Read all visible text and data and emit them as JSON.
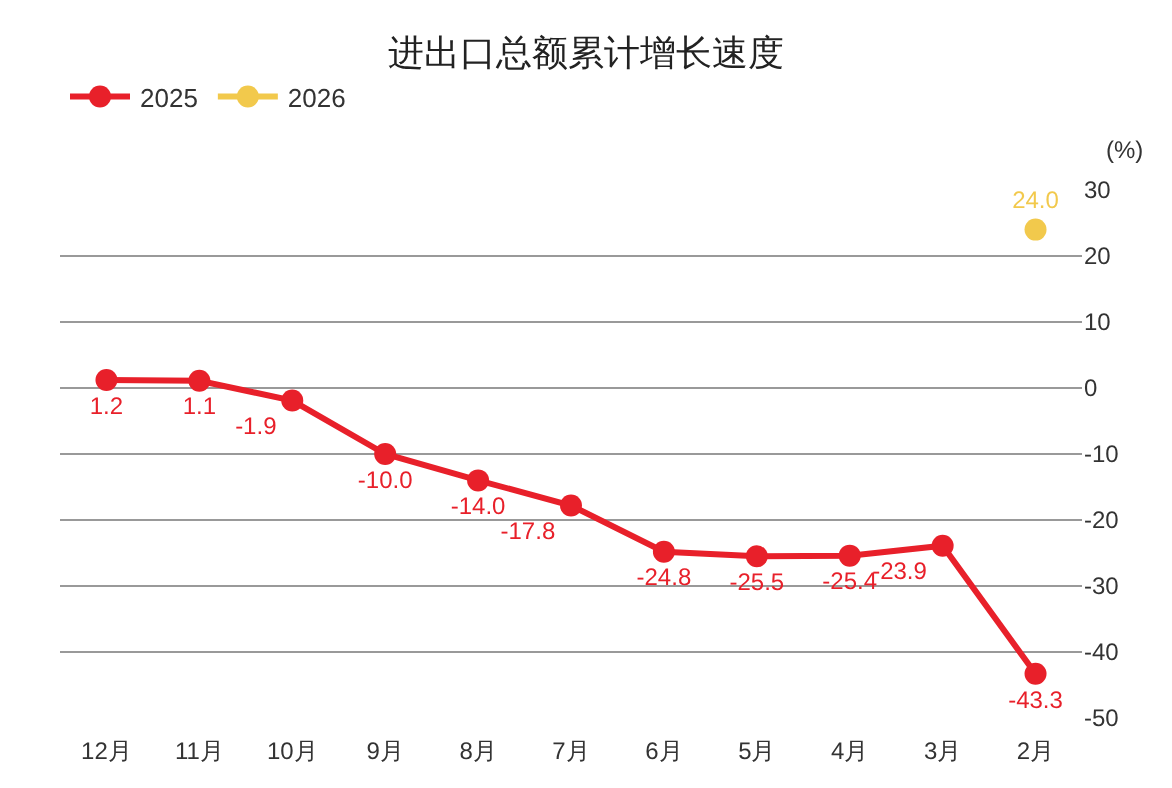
{
  "chart_data": {
    "type": "line",
    "title": "进出口总额累计增长速度",
    "ylabel": "(%)",
    "categories": [
      "12月",
      "11月",
      "10月",
      "9月",
      "8月",
      "7月",
      "6月",
      "5月",
      "4月",
      "3月",
      "2月"
    ],
    "series": [
      {
        "name": "2025",
        "color": "#e8202a",
        "values": [
          1.2,
          1.1,
          -1.9,
          -10.0,
          -14.0,
          -17.8,
          -24.8,
          -25.5,
          -25.4,
          -23.9,
          -43.3
        ],
        "value_labels": [
          "1.2",
          "1.1",
          "-1.9",
          "-10.0",
          "-14.0",
          "-17.8",
          "-24.8",
          "-25.5",
          "-25.4",
          "-23.9",
          "-43.3"
        ]
      },
      {
        "name": "2026",
        "color": "#f2c94c",
        "values": [
          null,
          null,
          null,
          null,
          null,
          null,
          null,
          null,
          null,
          null,
          24.0
        ],
        "value_labels": [
          null,
          null,
          null,
          null,
          null,
          null,
          null,
          null,
          null,
          null,
          "24.0"
        ]
      }
    ],
    "ylim": [
      -50,
      30
    ],
    "yticks": [
      -50,
      -40,
      -30,
      -20,
      -10,
      0,
      10,
      20,
      30
    ],
    "grid": "y",
    "legend": "top left",
    "marker": "circle",
    "line_style": "solid"
  }
}
